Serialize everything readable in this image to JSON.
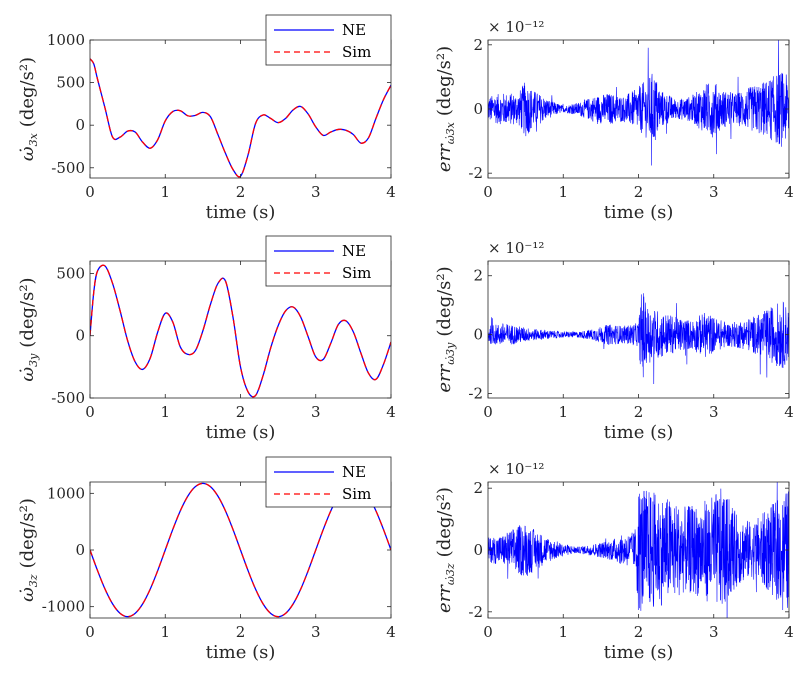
{
  "colors": {
    "ne": "#0000ff",
    "sim": "#ff0000",
    "axis": "#262626",
    "background": "#ffffff"
  },
  "chart_data": [
    {
      "id": "w3x",
      "type": "line",
      "ylabel_prefix": "ω̇",
      "ylabel_sub": "3x",
      "ylabel_unit": "(deg/s²)",
      "xlabel": "time (s)",
      "xlim": [
        0,
        4
      ],
      "ylim": [
        -620,
        1000
      ],
      "yticks": [
        -500,
        0,
        500,
        1000
      ],
      "ytick_labels": [
        "-500",
        "0",
        "500",
        "1000"
      ],
      "xticks": [
        0,
        1,
        2,
        3,
        4
      ],
      "xtick_labels": [
        "0",
        "1",
        "2",
        "3",
        "4"
      ],
      "legend": {
        "position": "top-right",
        "entries": [
          "NE",
          "Sim"
        ]
      },
      "series": [
        {
          "name": "NE",
          "style": "solid",
          "x": [
            0,
            0.05,
            0.1,
            0.2,
            0.3,
            0.4,
            0.5,
            0.6,
            0.7,
            0.8,
            0.9,
            1.0,
            1.1,
            1.2,
            1.3,
            1.4,
            1.5,
            1.6,
            1.7,
            1.8,
            1.9,
            2.0,
            2.1,
            2.2,
            2.3,
            2.4,
            2.5,
            2.6,
            2.7,
            2.8,
            2.9,
            3.0,
            3.1,
            3.2,
            3.3,
            3.4,
            3.5,
            3.6,
            3.7,
            3.8,
            3.9,
            4.0
          ],
          "values": [
            780,
            720,
            540,
            200,
            -140,
            -140,
            -70,
            -80,
            -200,
            -270,
            -170,
            50,
            160,
            170,
            110,
            115,
            150,
            100,
            -110,
            -330,
            -520,
            -600,
            -350,
            20,
            120,
            80,
            30,
            80,
            180,
            220,
            130,
            -20,
            -120,
            -80,
            -50,
            -60,
            -110,
            -210,
            -150,
            80,
            300,
            470
          ]
        },
        {
          "name": "Sim",
          "style": "dashed",
          "x": [
            0,
            0.05,
            0.1,
            0.2,
            0.3,
            0.4,
            0.5,
            0.6,
            0.7,
            0.8,
            0.9,
            1.0,
            1.1,
            1.2,
            1.3,
            1.4,
            1.5,
            1.6,
            1.7,
            1.8,
            1.9,
            2.0,
            2.1,
            2.2,
            2.3,
            2.4,
            2.5,
            2.6,
            2.7,
            2.8,
            2.9,
            3.0,
            3.1,
            3.2,
            3.3,
            3.4,
            3.5,
            3.6,
            3.7,
            3.8,
            3.9,
            4.0
          ],
          "values": [
            780,
            720,
            540,
            200,
            -140,
            -140,
            -70,
            -80,
            -200,
            -270,
            -170,
            50,
            160,
            170,
            110,
            115,
            150,
            100,
            -110,
            -330,
            -520,
            -600,
            -350,
            20,
            120,
            80,
            30,
            80,
            180,
            220,
            130,
            -20,
            -120,
            -80,
            -50,
            -60,
            -110,
            -210,
            -150,
            80,
            300,
            470
          ]
        }
      ]
    },
    {
      "id": "err3x",
      "type": "line",
      "ylabel_prefix": "err",
      "ylabel_sub": "ω̇3x",
      "ylabel_unit": "(deg/s²)",
      "multiplier": "× 10⁻¹²",
      "xlabel": "time (s)",
      "xlim": [
        0,
        4
      ],
      "ylim": [
        -2.15,
        2.15
      ],
      "yticks": [
        -2,
        0,
        2
      ],
      "ytick_labels": [
        "-2",
        "0",
        "2"
      ],
      "xticks": [
        0,
        1,
        2,
        3,
        4
      ],
      "xtick_labels": [
        "0",
        "1",
        "2",
        "3",
        "4"
      ],
      "series": [
        {
          "name": "err",
          "style": "noise",
          "x": [
            0,
            0.2,
            0.4,
            0.5,
            0.6,
            0.8,
            1.0,
            1.2,
            1.4,
            1.6,
            1.8,
            1.95,
            2.1,
            2.2,
            2.3,
            2.5,
            2.7,
            2.9,
            3.0,
            3.1,
            3.3,
            3.5,
            3.7,
            3.9,
            4.0
          ],
          "values": [
            0.4,
            0.5,
            0.5,
            0.9,
            0.6,
            0.3,
            0.1,
            0.2,
            0.4,
            0.5,
            0.4,
            0.6,
            0.9,
            1.2,
            0.6,
            0.3,
            0.4,
            0.8,
            0.9,
            0.6,
            0.5,
            0.7,
            0.9,
            1.2,
            1.0
          ]
        }
      ]
    },
    {
      "id": "w3y",
      "type": "line",
      "ylabel_prefix": "ω̇",
      "ylabel_sub": "3y",
      "ylabel_unit": "(deg/s²)",
      "xlabel": "time (s)",
      "xlim": [
        0,
        4
      ],
      "ylim": [
        -500,
        600
      ],
      "yticks": [
        -500,
        0,
        500
      ],
      "ytick_labels": [
        "-500",
        "0",
        "500"
      ],
      "xticks": [
        0,
        1,
        2,
        3,
        4
      ],
      "xtick_labels": [
        "0",
        "1",
        "2",
        "3",
        "4"
      ],
      "legend": {
        "position": "top-right",
        "entries": [
          "NE",
          "Sim"
        ]
      },
      "series": [
        {
          "name": "NE",
          "style": "solid",
          "x": [
            0,
            0.05,
            0.1,
            0.2,
            0.3,
            0.4,
            0.5,
            0.6,
            0.7,
            0.8,
            0.9,
            1.0,
            1.1,
            1.2,
            1.3,
            1.4,
            1.5,
            1.6,
            1.7,
            1.8,
            1.9,
            2.0,
            2.1,
            2.2,
            2.3,
            2.4,
            2.5,
            2.6,
            2.7,
            2.8,
            2.9,
            3.0,
            3.1,
            3.2,
            3.3,
            3.4,
            3.5,
            3.6,
            3.7,
            3.8,
            3.9,
            4.0
          ],
          "values": [
            0,
            350,
            520,
            560,
            420,
            200,
            -40,
            -210,
            -270,
            -180,
            30,
            180,
            110,
            -90,
            -150,
            -120,
            40,
            250,
            420,
            440,
            150,
            -250,
            -450,
            -480,
            -320,
            -100,
            80,
            200,
            230,
            150,
            -10,
            -170,
            -190,
            -60,
            90,
            120,
            30,
            -140,
            -300,
            -350,
            -230,
            -50
          ]
        },
        {
          "name": "Sim",
          "style": "dashed",
          "x": [
            0,
            0.05,
            0.1,
            0.2,
            0.3,
            0.4,
            0.5,
            0.6,
            0.7,
            0.8,
            0.9,
            1.0,
            1.1,
            1.2,
            1.3,
            1.4,
            1.5,
            1.6,
            1.7,
            1.8,
            1.9,
            2.0,
            2.1,
            2.2,
            2.3,
            2.4,
            2.5,
            2.6,
            2.7,
            2.8,
            2.9,
            3.0,
            3.1,
            3.2,
            3.3,
            3.4,
            3.5,
            3.6,
            3.7,
            3.8,
            3.9,
            4.0
          ],
          "values": [
            0,
            350,
            520,
            560,
            420,
            200,
            -40,
            -210,
            -270,
            -180,
            30,
            180,
            110,
            -90,
            -150,
            -120,
            40,
            250,
            420,
            440,
            150,
            -250,
            -450,
            -480,
            -320,
            -100,
            80,
            200,
            230,
            150,
            -10,
            -170,
            -190,
            -60,
            90,
            120,
            30,
            -140,
            -300,
            -350,
            -230,
            -50
          ]
        }
      ]
    },
    {
      "id": "err3y",
      "type": "line",
      "ylabel_prefix": "err",
      "ylabel_sub": "ω̇3y",
      "ylabel_unit": "(deg/s²)",
      "multiplier": "× 10⁻¹²",
      "xlabel": "time (s)",
      "xlim": [
        0,
        4
      ],
      "ylim": [
        -2.15,
        2.5
      ],
      "yticks": [
        -2,
        0,
        2
      ],
      "ytick_labels": [
        "-2",
        "0",
        "2"
      ],
      "xticks": [
        0,
        1,
        2,
        3,
        4
      ],
      "xtick_labels": [
        "0",
        "1",
        "2",
        "3",
        "4"
      ],
      "series": [
        {
          "name": "err",
          "style": "noise",
          "x": [
            0,
            0.2,
            0.4,
            0.6,
            0.8,
            1.0,
            1.2,
            1.4,
            1.6,
            1.8,
            2.0,
            2.05,
            2.1,
            2.3,
            2.5,
            2.7,
            2.9,
            3.0,
            3.2,
            3.4,
            3.6,
            3.8,
            3.9,
            4.0
          ],
          "values": [
            0.3,
            0.4,
            0.3,
            0.2,
            0.15,
            0.1,
            0.1,
            0.2,
            0.35,
            0.3,
            0.4,
            1.8,
            1.0,
            0.8,
            0.6,
            0.5,
            0.8,
            0.6,
            0.4,
            0.5,
            0.7,
            1.0,
            1.2,
            0.9
          ]
        }
      ]
    },
    {
      "id": "w3z",
      "type": "line",
      "ylabel_prefix": "ω̇",
      "ylabel_sub": "3z",
      "ylabel_unit": "(deg/s²)",
      "xlabel": "time (s)",
      "xlim": [
        0,
        4
      ],
      "ylim": [
        -1200,
        1200
      ],
      "yticks": [
        -1000,
        0,
        1000
      ],
      "ytick_labels": [
        "-1000",
        "0",
        "1000"
      ],
      "xticks": [
        0,
        1,
        2,
        3,
        4
      ],
      "xtick_labels": [
        "0",
        "1",
        "2",
        "3",
        "4"
      ],
      "legend": {
        "position": "top-right",
        "entries": [
          "NE",
          "Sim"
        ]
      },
      "series": [
        {
          "name": "NE",
          "style": "solid",
          "x": [
            0,
            0.1,
            0.2,
            0.3,
            0.4,
            0.5,
            0.6,
            0.7,
            0.8,
            0.9,
            1.0,
            1.1,
            1.2,
            1.3,
            1.4,
            1.5,
            1.6,
            1.7,
            1.8,
            1.9,
            2.0,
            2.1,
            2.2,
            2.3,
            2.4,
            2.5,
            2.6,
            2.7,
            2.8,
            2.9,
            3.0,
            3.1,
            3.2,
            3.3,
            3.4,
            3.5,
            3.6,
            3.7,
            3.8,
            3.9,
            4.0
          ],
          "values": [
            0,
            -363,
            -691,
            -951,
            -1118,
            -1176,
            -1118,
            -951,
            -691,
            -363,
            0,
            363,
            691,
            951,
            1118,
            1176,
            1118,
            951,
            691,
            363,
            0,
            -363,
            -691,
            -951,
            -1118,
            -1176,
            -1118,
            -951,
            -691,
            -363,
            0,
            363,
            691,
            951,
            1118,
            1176,
            1118,
            951,
            691,
            363,
            0
          ]
        },
        {
          "name": "Sim",
          "style": "dashed",
          "x": [
            0,
            0.1,
            0.2,
            0.3,
            0.4,
            0.5,
            0.6,
            0.7,
            0.8,
            0.9,
            1.0,
            1.1,
            1.2,
            1.3,
            1.4,
            1.5,
            1.6,
            1.7,
            1.8,
            1.9,
            2.0,
            2.1,
            2.2,
            2.3,
            2.4,
            2.5,
            2.6,
            2.7,
            2.8,
            2.9,
            3.0,
            3.1,
            3.2,
            3.3,
            3.4,
            3.5,
            3.6,
            3.7,
            3.8,
            3.9,
            4.0
          ],
          "values": [
            0,
            -363,
            -691,
            -951,
            -1118,
            -1176,
            -1118,
            -951,
            -691,
            -363,
            0,
            363,
            691,
            951,
            1118,
            1176,
            1118,
            951,
            691,
            363,
            0,
            -363,
            -691,
            -951,
            -1118,
            -1176,
            -1118,
            -951,
            -691,
            -363,
            0,
            363,
            691,
            951,
            1118,
            1176,
            1118,
            951,
            691,
            363,
            0
          ]
        }
      ]
    },
    {
      "id": "err3z",
      "type": "line",
      "ylabel_prefix": "err",
      "ylabel_sub": "ω̇3z",
      "ylabel_unit": "(deg/s²)",
      "multiplier": "× 10⁻¹²",
      "xlabel": "time (s)",
      "xlim": [
        0,
        4
      ],
      "ylim": [
        -2.2,
        2.2
      ],
      "yticks": [
        -2,
        0,
        2
      ],
      "ytick_labels": [
        "-2",
        "0",
        "2"
      ],
      "xticks": [
        0,
        1,
        2,
        3,
        4
      ],
      "xtick_labels": [
        "0",
        "1",
        "2",
        "3",
        "4"
      ],
      "series": [
        {
          "name": "err",
          "style": "noise",
          "x": [
            0,
            0.2,
            0.4,
            0.5,
            0.6,
            0.8,
            1.0,
            1.2,
            1.4,
            1.6,
            1.8,
            1.95,
            2.0,
            2.2,
            2.4,
            2.6,
            2.8,
            3.0,
            3.1,
            3.3,
            3.5,
            3.7,
            3.9,
            4.0
          ],
          "values": [
            0.4,
            0.5,
            0.8,
            0.9,
            0.7,
            0.4,
            0.2,
            0.1,
            0.2,
            0.3,
            0.5,
            0.6,
            2.1,
            1.9,
            1.7,
            1.4,
            1.5,
            1.8,
            2.0,
            1.2,
            0.9,
            1.3,
            1.8,
            2.0
          ]
        }
      ]
    }
  ]
}
